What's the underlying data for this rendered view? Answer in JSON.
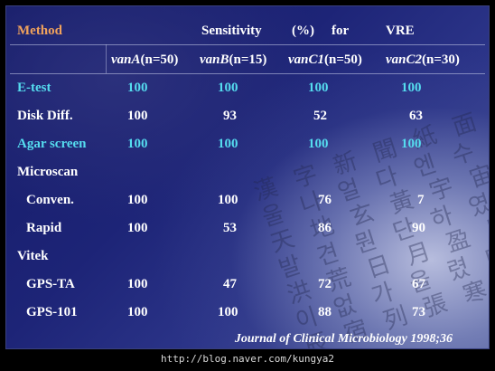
{
  "header": {
    "method_label": "Method",
    "sensitivity_label": "Sensitivity",
    "percent_label": "(%)",
    "for_label": "for",
    "vre_label": "VRE"
  },
  "columns": [
    {
      "gene": "vanA",
      "count": "(n=50)"
    },
    {
      "gene": "vanB",
      "count": "(n=15)"
    },
    {
      "gene": "vanC1",
      "count": "(n=50)"
    },
    {
      "gene": "vanC2",
      "count": "(n=30)"
    }
  ],
  "rows": [
    {
      "method": "E-test",
      "values": [
        "100",
        "100",
        "100",
        "100"
      ],
      "highlight": true
    },
    {
      "method": "Disk Diff.",
      "values": [
        "100",
        "93",
        "52",
        "63"
      ],
      "highlight": false
    },
    {
      "method": "Agar screen",
      "values": [
        "100",
        "100",
        "100",
        "100"
      ],
      "highlight": true
    },
    {
      "method": "Microscan",
      "values": [
        "",
        "",
        "",
        ""
      ],
      "highlight": false
    },
    {
      "method": "Conven.",
      "values": [
        "100",
        "100",
        "76",
        "7"
      ],
      "highlight": false
    },
    {
      "method": "Rapid",
      "values": [
        "100",
        "53",
        "86",
        "90"
      ],
      "highlight": false
    },
    {
      "method": "Vitek",
      "values": [
        "",
        "",
        "",
        ""
      ],
      "highlight": false
    },
    {
      "method": "GPS-TA",
      "values": [
        "100",
        "47",
        "72",
        "67"
      ],
      "highlight": false
    },
    {
      "method": "GPS-101",
      "values": [
        "100",
        "100",
        "88",
        "73"
      ],
      "highlight": false
    }
  ],
  "citation": "Journal of Clinical Microbiology 1998;36",
  "footer_url": "http://blog.naver.com/kungya2",
  "colors": {
    "header": "#f0a25c",
    "highlight": "#55dcef",
    "text": "#ffffff"
  }
}
